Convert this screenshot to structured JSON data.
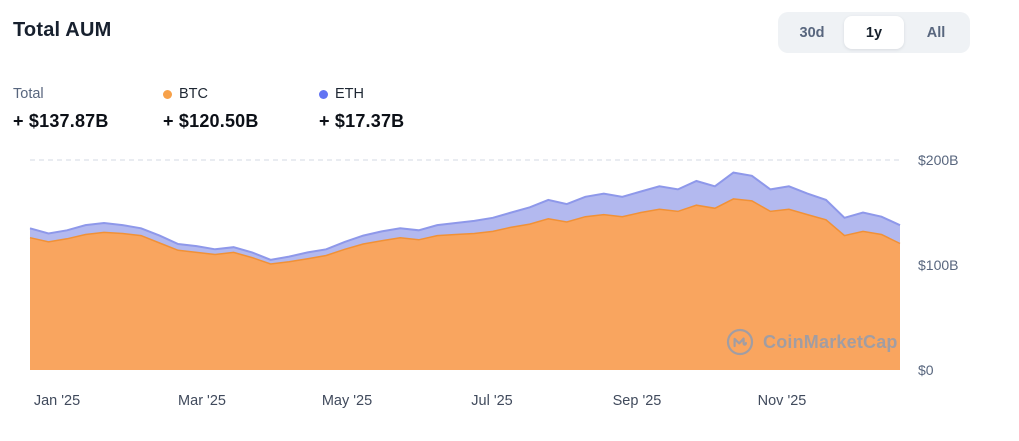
{
  "header": {
    "title": "Total AUM",
    "range_buttons": [
      {
        "label": "30d",
        "selected": false
      },
      {
        "label": "1y",
        "selected": true
      },
      {
        "label": "All",
        "selected": false
      }
    ]
  },
  "legend": {
    "total": {
      "label": "Total",
      "value": "+ $137.87B"
    },
    "btc": {
      "label": "BTC",
      "value": "+ $120.50B",
      "color": "#f7a14a"
    },
    "eth": {
      "label": "ETH",
      "value": "+ $17.37B",
      "color": "#6274f3"
    }
  },
  "watermark": "CoinMarketCap",
  "chart_data": {
    "type": "area",
    "stacked": true,
    "title": "Total AUM",
    "unit": "USD billions",
    "ylim": [
      0,
      200
    ],
    "y_ticks": [
      200,
      100,
      0
    ],
    "y_tick_labels": [
      "$200B",
      "$100B",
      "$0"
    ],
    "x_tick_months": [
      0,
      2,
      4,
      6,
      8,
      10
    ],
    "x_tick_labels": [
      "Jan '25",
      "Mar '25",
      "May '25",
      "Jul '25",
      "Sep '25",
      "Nov '25"
    ],
    "months_span": 12,
    "legend_position": "top-left",
    "grid": "dashed-top-only",
    "series": [
      {
        "name": "BTC",
        "fill": "#f9a55f",
        "line_color": "#f19136",
        "values": [
          126,
          122,
          125,
          129,
          131,
          130,
          128,
          121,
          114,
          112,
          110,
          112,
          107,
          101,
          103,
          106,
          109,
          115,
          120,
          123,
          126,
          124,
          128,
          129,
          130,
          132,
          136,
          139,
          144,
          141,
          146,
          148,
          146,
          150,
          153,
          151,
          157,
          154,
          163,
          161,
          151,
          153,
          148,
          143,
          128,
          132,
          129,
          120.5
        ]
      },
      {
        "name": "ETH",
        "fill": "#b3b9ef",
        "line_color": "#8e98ea",
        "values": [
          9,
          8,
          8,
          9,
          9,
          8,
          7,
          7,
          6,
          6,
          5,
          5,
          5,
          4,
          5,
          6,
          6,
          7,
          8,
          9,
          9,
          9,
          10,
          11,
          12,
          13,
          14,
          16,
          18,
          17,
          19,
          20,
          19,
          20,
          22,
          21,
          23,
          21,
          25,
          24,
          21,
          22,
          20,
          19,
          17,
          18,
          17,
          17.37
        ]
      }
    ]
  }
}
